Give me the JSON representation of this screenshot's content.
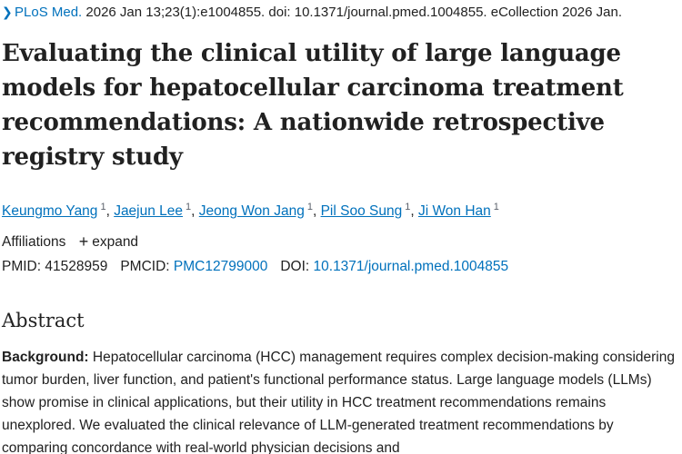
{
  "citation": {
    "journal": "PLoS Med.",
    "details": " 2026 Jan 13;23(1):e1004855. doi: 10.1371/journal.pmed.1004855. eCollection 2026 Jan."
  },
  "title": "Evaluating the clinical utility of large language models for hepatocellular carcinoma treatment recommendations: A nationwide retrospective registry study",
  "authors": [
    {
      "name": "Keungmo Yang",
      "sup": "1"
    },
    {
      "name": "Jaejun Lee",
      "sup": "1"
    },
    {
      "name": "Jeong Won Jang",
      "sup": "1"
    },
    {
      "name": "Pil Soo Sung",
      "sup": "1"
    },
    {
      "name": "Ji Won Han",
      "sup": "1"
    }
  ],
  "author_separator": ", ",
  "affiliations": {
    "label": "Affiliations",
    "expand_label": "expand"
  },
  "ids": {
    "pmid_label": "PMID:",
    "pmid": "41528959",
    "pmcid_label": "PMCID:",
    "pmcid": "PMC12799000",
    "doi_label": "DOI:",
    "doi": "10.1371/journal.pmed.1004855"
  },
  "abstract": {
    "heading": "Abstract",
    "background_label": "Background:",
    "background_text": " Hepatocellular carcinoma (HCC) management requires complex decision-making considering tumor burden, liver function, and patient's functional performance status. Large language models (LLMs) show promise in clinical applications, but their utility in HCC treatment recommendations remains unexplored. We evaluated the clinical relevance of LLM-generated treatment recommendations by comparing concordance with real-world physician decisions and"
  },
  "colors": {
    "link": "#0071bc",
    "text": "#212121"
  }
}
